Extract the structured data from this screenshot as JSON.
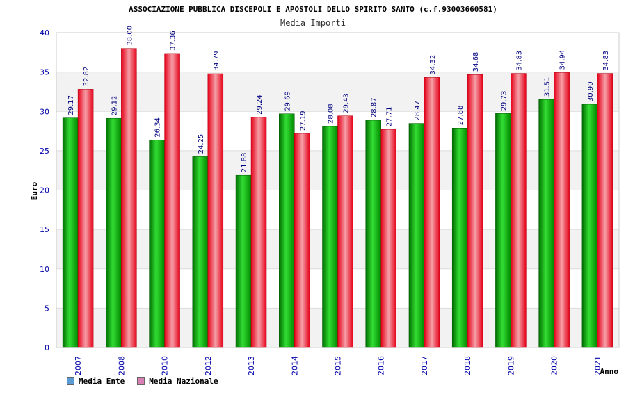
{
  "chart_data": {
    "type": "bar",
    "title": "ASSOCIAZIONE PUBBLICA DISCEPOLI E APOSTOLI DELLO SPIRITO SANTO (c.f.93003660581)",
    "subtitle": "Media Importi",
    "xlabel": "Anno",
    "ylabel": "Euro",
    "ylim": [
      0,
      40
    ],
    "yticks": [
      0,
      5,
      10,
      15,
      20,
      25,
      30,
      35,
      40
    ],
    "grid": true,
    "legend_position": "bottom-left",
    "categories": [
      "2007",
      "2008",
      "2010",
      "2012",
      "2013",
      "2014",
      "2015",
      "2016",
      "2017",
      "2018",
      "2019",
      "2020",
      "2021"
    ],
    "series": [
      {
        "name": "Media Ente",
        "legend_color": "#5b9bd5",
        "bar_color": "#00aa00",
        "values": [
          29.17,
          29.12,
          26.34,
          24.25,
          21.88,
          29.69,
          28.08,
          28.87,
          28.47,
          27.88,
          29.73,
          31.51,
          30.9
        ],
        "labels": [
          "29.17",
          "29.12",
          "26.34",
          "24.25",
          "21.88",
          "29.69",
          "28.08",
          "28.87",
          "28.47",
          "27.88",
          "29.73",
          "31.51",
          "30.90"
        ]
      },
      {
        "name": "Media Nazionale",
        "legend_color": "#d97fb4",
        "bar_color": "#e0001a",
        "values": [
          32.82,
          38.0,
          37.36,
          34.79,
          29.24,
          27.19,
          29.43,
          27.71,
          34.32,
          34.68,
          34.83,
          34.94,
          34.83
        ],
        "labels": [
          "32.82",
          "38.00",
          "37.36",
          "34.79",
          "29.24",
          "27.19",
          "29.43",
          "27.71",
          "34.32",
          "34.68",
          "34.83",
          "34.94",
          "34.83"
        ]
      }
    ]
  }
}
